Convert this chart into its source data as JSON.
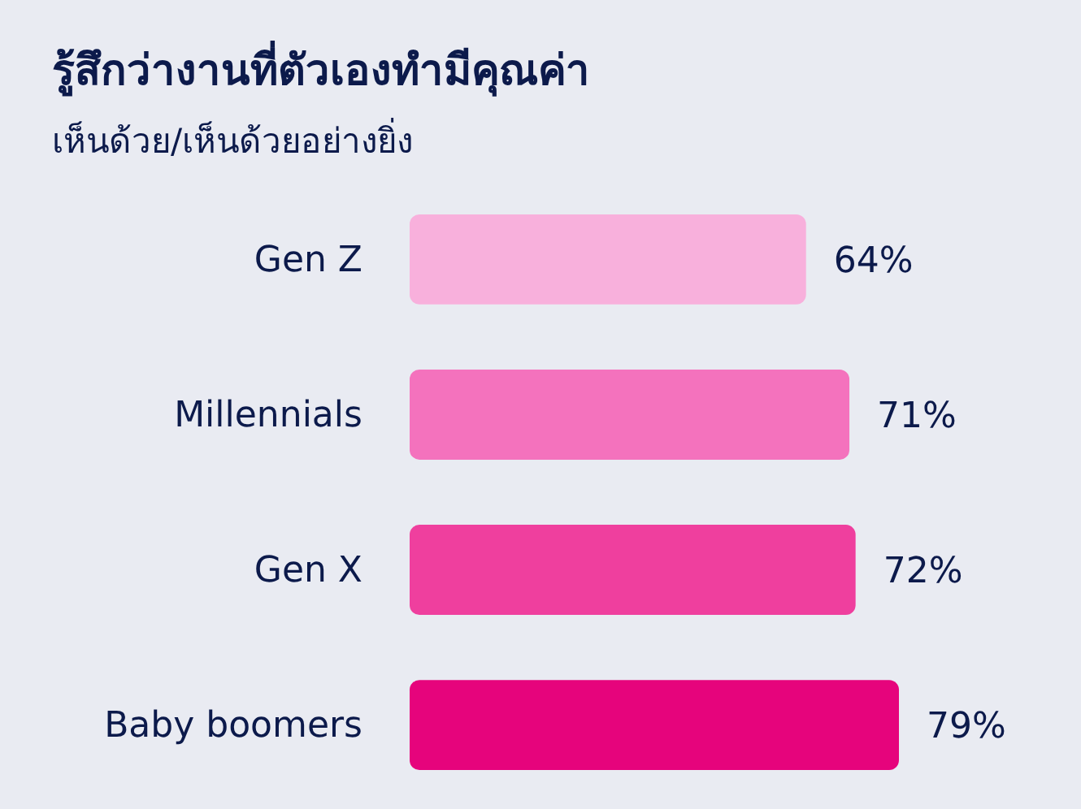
{
  "chart_data": {
    "type": "bar",
    "orientation": "horizontal",
    "title": "รู้สึกว่างานที่ตัวเองทำมีคุณค่า",
    "subtitle": "เห็นด้วย/เห็นด้วยอย่างยิ่ง",
    "categories": [
      "Gen Z",
      "Millennials",
      "Gen X",
      "Baby boomers"
    ],
    "values": [
      64,
      71,
      72,
      79
    ],
    "colors": [
      "#f8b0dc",
      "#f472bd",
      "#ef3f9e",
      "#e6047c"
    ],
    "value_labels": [
      "64%",
      "71%",
      "72%",
      "79%"
    ]
  }
}
